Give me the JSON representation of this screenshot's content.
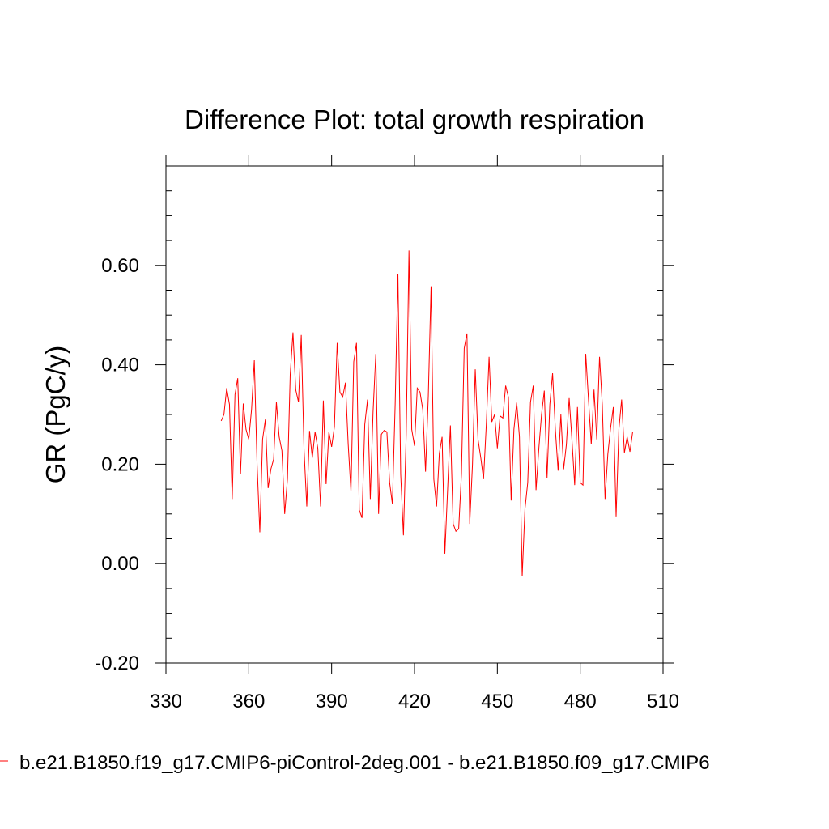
{
  "chart_data": {
    "type": "line",
    "title": "Difference Plot: total growth respiration",
    "xlabel": "",
    "ylabel": "GR  (PgC/y)",
    "xlim": [
      330,
      510
    ],
    "ylim": [
      -0.2,
      0.8
    ],
    "xticks": [
      330,
      360,
      390,
      420,
      450,
      480,
      510
    ],
    "xtick_labels": [
      "330",
      "360",
      "390",
      "420",
      "450",
      "480",
      "510"
    ],
    "yticks": [
      -0.2,
      0.0,
      0.2,
      0.4,
      0.6
    ],
    "ytick_labels": [
      "-0.20",
      "0.00",
      "0.20",
      "0.40",
      "0.60"
    ],
    "grid": false,
    "legend_position": "bottom-left",
    "series": [
      {
        "name": "b.e21.B1850.f19_g17.CMIP6-piControl-2deg.001 - b.e21.B1850.f09_g17.CMIP6",
        "color": "#ff0000",
        "x_start": 350,
        "x_step": 1,
        "values": [
          0.287,
          0.3,
          0.353,
          0.32,
          0.13,
          0.34,
          0.373,
          0.18,
          0.322,
          0.27,
          0.25,
          0.31,
          0.409,
          0.2,
          0.063,
          0.25,
          0.29,
          0.152,
          0.19,
          0.21,
          0.325,
          0.255,
          0.227,
          0.1,
          0.17,
          0.38,
          0.465,
          0.35,
          0.325,
          0.46,
          0.23,
          0.115,
          0.267,
          0.213,
          0.265,
          0.232,
          0.115,
          0.328,
          0.16,
          0.265,
          0.235,
          0.275,
          0.444,
          0.345,
          0.335,
          0.364,
          0.24,
          0.145,
          0.406,
          0.444,
          0.108,
          0.092,
          0.28,
          0.33,
          0.13,
          0.305,
          0.422,
          0.1,
          0.26,
          0.268,
          0.265,
          0.163,
          0.12,
          0.32,
          0.583,
          0.18,
          0.057,
          0.26,
          0.63,
          0.27,
          0.237,
          0.353,
          0.345,
          0.31,
          0.185,
          0.337,
          0.558,
          0.17,
          0.115,
          0.222,
          0.255,
          0.02,
          0.15,
          0.278,
          0.08,
          0.065,
          0.07,
          0.18,
          0.433,
          0.463,
          0.08,
          0.2,
          0.391,
          0.25,
          0.213,
          0.17,
          0.28,
          0.416,
          0.285,
          0.3,
          0.232,
          0.297,
          0.293,
          0.358,
          0.335,
          0.127,
          0.27,
          0.324,
          0.255,
          -0.025,
          0.11,
          0.163,
          0.325,
          0.358,
          0.148,
          0.23,
          0.3,
          0.348,
          0.173,
          0.32,
          0.383,
          0.27,
          0.187,
          0.3,
          0.19,
          0.24,
          0.333,
          0.25,
          0.158,
          0.315,
          0.163,
          0.158,
          0.422,
          0.33,
          0.24,
          0.35,
          0.25,
          0.416,
          0.32,
          0.13,
          0.22,
          0.273,
          0.315,
          0.095,
          0.27,
          0.33,
          0.223,
          0.255,
          0.225,
          0.265
        ]
      }
    ]
  }
}
